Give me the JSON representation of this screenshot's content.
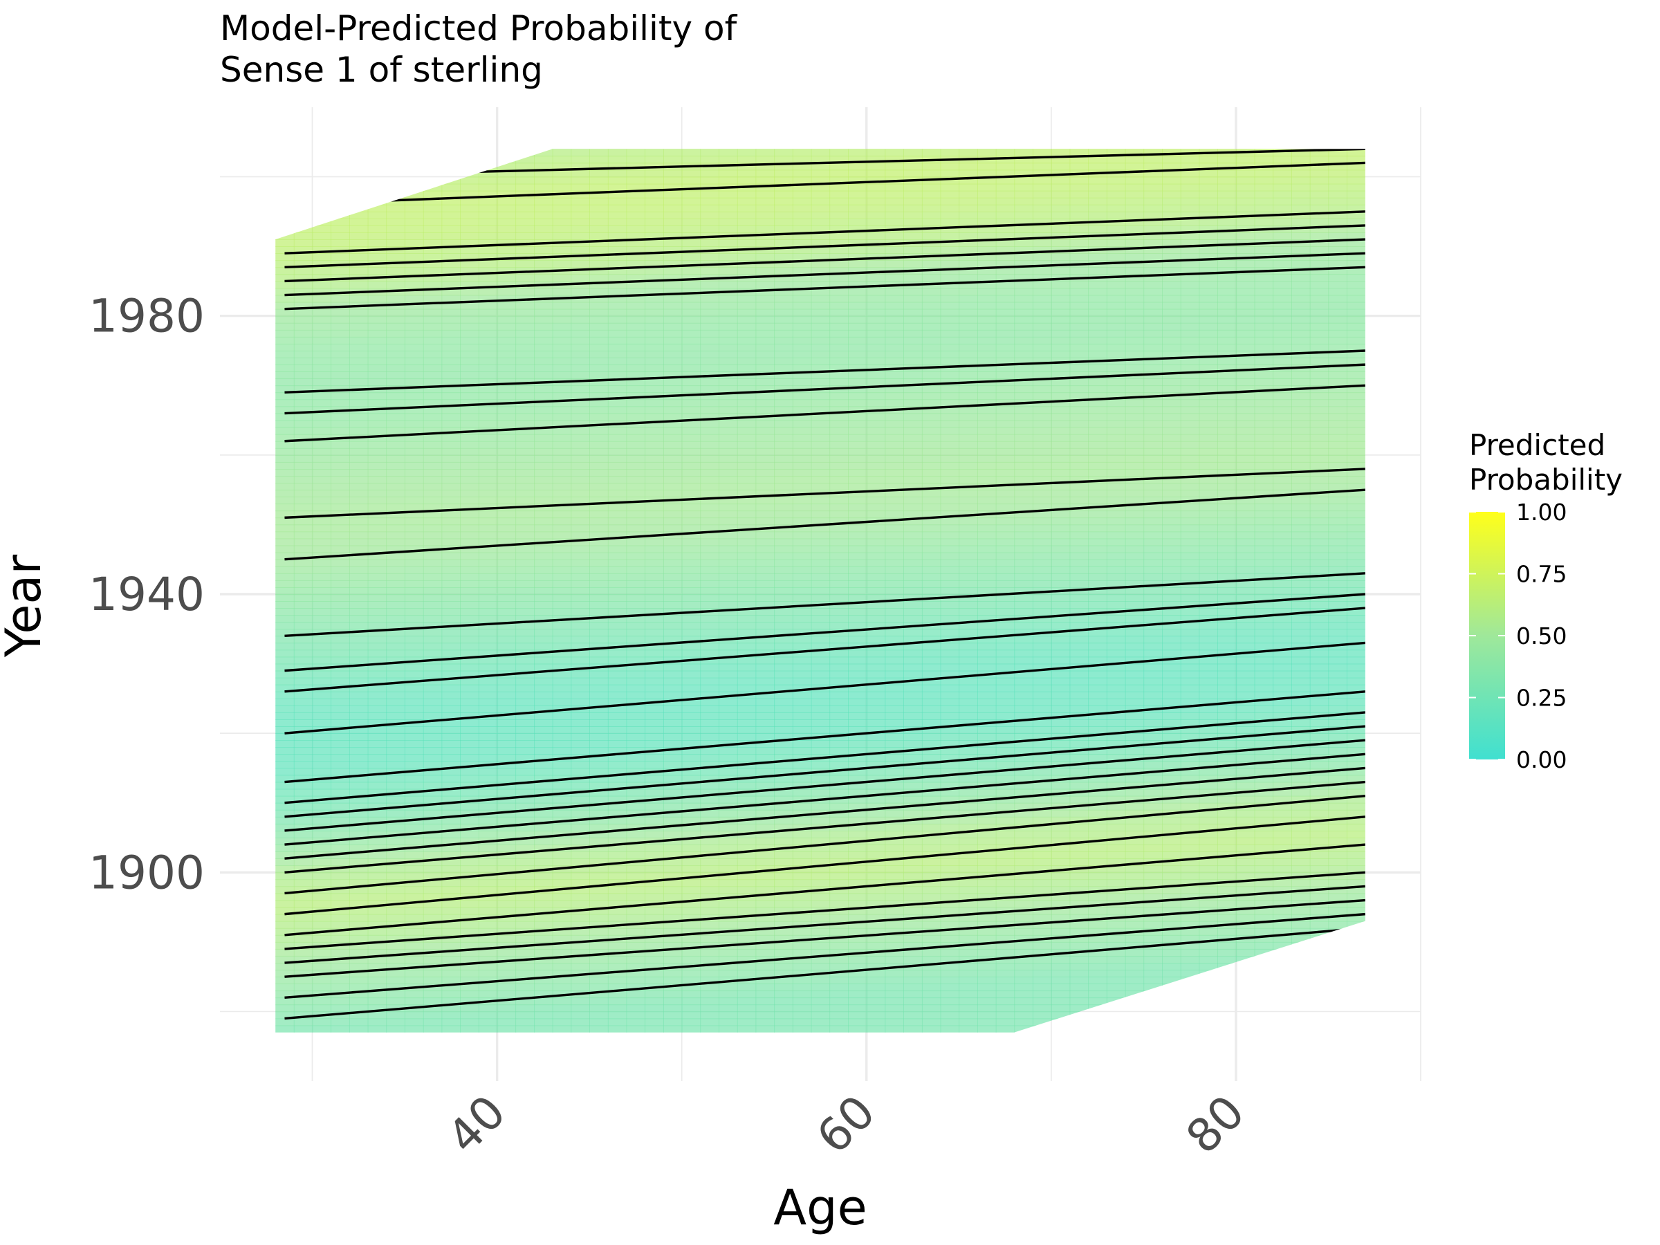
{
  "chart_data": {
    "type": "heatmap",
    "title": "Model-Predicted Probability of\nSense 1 of sterling",
    "xlabel": "Age",
    "ylabel": "Year",
    "xlim": [
      25,
      90
    ],
    "ylim": [
      1870,
      2010
    ],
    "x_ticks": [
      40,
      60,
      80
    ],
    "y_ticks": [
      1900,
      1940,
      1980
    ],
    "grid": true,
    "legend": {
      "title": "Predicted\nProbability",
      "position": "right",
      "ticks": [
        "0.00",
        "0.25",
        "0.50",
        "0.75",
        "1.00"
      ],
      "range": [
        0,
        1
      ],
      "colors": {
        "low": "#40e0d0",
        "high": "#ffff1a"
      }
    },
    "data_region": {
      "age_range": [
        28,
        87
      ],
      "year_bottom": {
        "at_age_28": 1877,
        "at_age_68": 1877,
        "at_age_87": 1893
      },
      "year_top": {
        "at_age_28": 1991,
        "at_age_43": 2004,
        "at_age_87": 2004
      }
    },
    "probability_profile": {
      "note": "predicted probability along the year axis at age 28; lines drift upward with age",
      "age_slope_years_per_year": 0.18,
      "year": [
        1877,
        1885,
        1890,
        1895,
        1900,
        1905,
        1910,
        1915,
        1920,
        1925,
        1930,
        1935,
        1940,
        1945,
        1950,
        1955,
        1960,
        1965,
        1970,
        1975,
        1980,
        1985,
        1990,
        1995,
        2000,
        2005
      ],
      "probability": [
        0.3,
        0.45,
        0.55,
        0.62,
        0.55,
        0.38,
        0.25,
        0.18,
        0.17,
        0.2,
        0.28,
        0.35,
        0.42,
        0.5,
        0.52,
        0.5,
        0.46,
        0.42,
        0.4,
        0.42,
        0.48,
        0.6,
        0.66,
        0.68,
        0.62,
        0.5
      ]
    },
    "contour_lines": {
      "year_at_age_28": [
        1879,
        1882,
        1885,
        1887,
        1889,
        1891,
        1894,
        1897,
        1900,
        1902,
        1904,
        1906,
        1908,
        1910,
        1913,
        1920,
        1926,
        1929,
        1934,
        1945,
        1951,
        1962,
        1966,
        1969,
        1981,
        1983,
        1985,
        1987,
        1989,
        1996,
        2000
      ],
      "year_at_age_87": [
        1892,
        1894,
        1896,
        1898,
        1900,
        1904,
        1908,
        1911,
        1913,
        1915,
        1917,
        1919,
        1921,
        1923,
        1926,
        1933,
        1938,
        1940,
        1943,
        1955,
        1958,
        1970,
        1973,
        1975,
        1987,
        1989,
        1991,
        1993,
        1995,
        2002,
        2004
      ]
    }
  }
}
